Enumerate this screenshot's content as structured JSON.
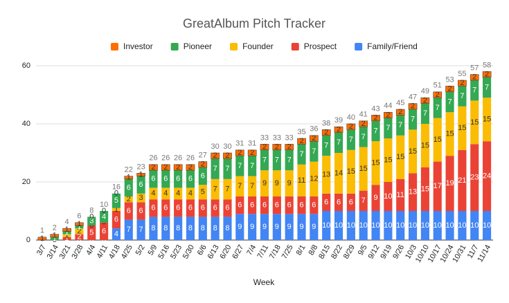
{
  "chart_data": {
    "type": "stacked_bar",
    "title": "GreatAlbum Pitch Tracker",
    "x_label": "Week",
    "categories": [
      "3/7",
      "3/14",
      "3/21",
      "3/28",
      "4/4",
      "4/11",
      "4/18",
      "4/25",
      "5/2",
      "5/9",
      "5/16",
      "5/23",
      "5/30",
      "6/6",
      "6/13",
      "6/20",
      "6/27",
      "7/4",
      "7/11",
      "7/18",
      "7/25",
      "8/1",
      "8/8",
      "8/15",
      "8/22",
      "8/29",
      "9/5",
      "9/12",
      "9/19",
      "9/26",
      "10/3",
      "10/10",
      "10/17",
      "10/24",
      "10/31",
      "11/7",
      "11/14"
    ],
    "series": [
      {
        "name": "Family/Friend",
        "color": "#4285f4",
        "values": [
          0,
          0,
          0,
          0,
          0,
          0,
          4,
          7,
          7,
          8,
          8,
          8,
          8,
          8,
          8,
          8,
          9,
          9,
          9,
          9,
          9,
          9,
          9,
          10,
          10,
          10,
          10,
          10,
          10,
          10,
          10,
          10,
          10,
          10,
          10,
          10,
          10
        ]
      },
      {
        "name": "Prospect",
        "color": "#ea4335",
        "values": [
          0,
          0,
          1,
          2,
          5,
          6,
          6,
          6,
          6,
          6,
          6,
          6,
          6,
          6,
          6,
          6,
          6,
          6,
          6,
          6,
          6,
          6,
          6,
          6,
          6,
          6,
          7,
          9,
          10,
          11,
          13,
          15,
          17,
          19,
          21,
          23,
          24
        ]
      },
      {
        "name": "Founder",
        "color": "#fbbc04",
        "values": [
          0,
          0,
          1,
          2,
          0,
          0,
          1,
          2,
          3,
          4,
          4,
          4,
          4,
          5,
          7,
          7,
          7,
          7,
          9,
          9,
          9,
          11,
          12,
          13,
          14,
          15,
          15,
          15,
          15,
          15,
          15,
          15,
          15,
          15,
          15,
          15,
          15
        ]
      },
      {
        "name": "Pioneer",
        "color": "#34a853",
        "values": [
          0,
          1,
          1,
          1,
          3,
          4,
          5,
          6,
          6,
          6,
          6,
          6,
          6,
          6,
          7,
          7,
          7,
          7,
          7,
          7,
          7,
          7,
          7,
          7,
          7,
          7,
          7,
          7,
          7,
          7,
          7,
          7,
          7,
          7,
          7,
          7,
          7
        ]
      },
      {
        "name": "Investor",
        "color": "#ff6d01",
        "values": [
          1,
          1,
          1,
          1,
          0,
          0,
          0,
          1,
          1,
          2,
          2,
          2,
          2,
          2,
          2,
          2,
          2,
          2,
          2,
          2,
          2,
          2,
          2,
          2,
          2,
          2,
          2,
          2,
          2,
          2,
          2,
          2,
          2,
          2,
          2,
          2,
          2
        ]
      }
    ],
    "totals": [
      1,
      2,
      4,
      6,
      8,
      10,
      16,
      22,
      23,
      26,
      26,
      26,
      26,
      27,
      30,
      30,
      31,
      31,
      33,
      33,
      33,
      35,
      36,
      38,
      39,
      40,
      41,
      43,
      44,
      45,
      47,
      49,
      51,
      53,
      55,
      57,
      58
    ],
    "ylim": [
      0,
      60
    ],
    "yticks": [
      0,
      20,
      40,
      60
    ],
    "grid": true,
    "legend": "top"
  }
}
